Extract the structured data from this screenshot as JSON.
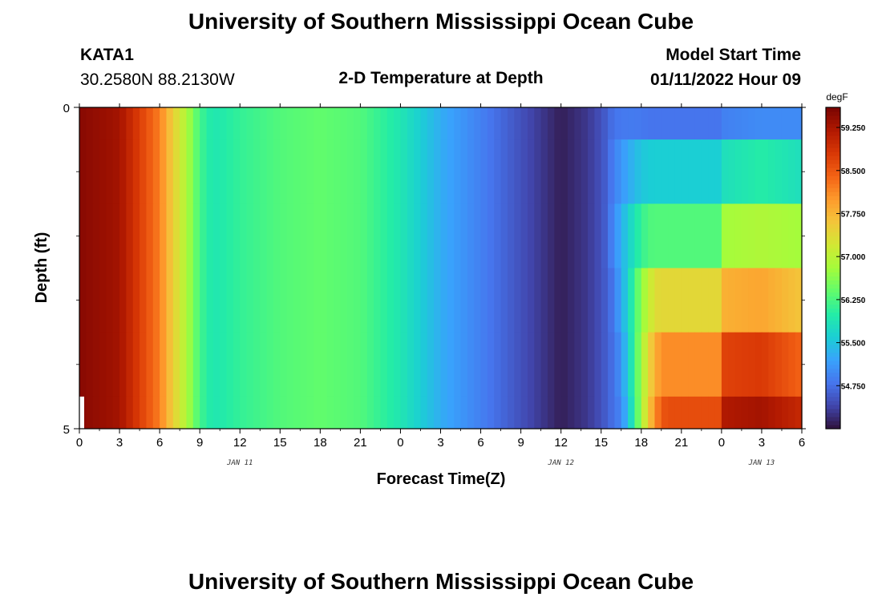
{
  "page": {
    "title_top": "University of Southern Mississippi Ocean Cube",
    "title_bottom": "University of Southern Mississippi Ocean Cube",
    "station_id": "KATA1",
    "station_coords": "30.2580N  88.2130W",
    "plot_title": "2-D Temperature at Depth",
    "model_label": "Model Start Time",
    "model_time": "01/11/2022 Hour 09"
  },
  "chart_data": {
    "type": "heatmap",
    "title": "2-D Temperature at Depth",
    "xlabel": "Forecast Time(Z)",
    "ylabel": "Depth (ft)",
    "x_range_hours": [
      0,
      54
    ],
    "x_tick_labels": [
      "0",
      "3",
      "6",
      "9",
      "12",
      "15",
      "18",
      "21",
      "0",
      "3",
      "6",
      "9",
      "12",
      "15",
      "18",
      "21",
      "0",
      "3",
      "6"
    ],
    "day_labels": [
      {
        "text": "JAN 11",
        "hour": 12
      },
      {
        "text": "JAN 12",
        "hour": 36
      },
      {
        "text": "JAN 13",
        "hour": 51
      }
    ],
    "ylim": [
      0,
      5
    ],
    "y_tick_labels": [
      "0",
      "5"
    ],
    "y_minor_ticks": [
      1,
      2,
      3,
      4
    ],
    "depth_layers_ft": [
      0,
      1,
      2,
      3,
      4,
      5
    ],
    "colorbar": {
      "unit": "degF",
      "range": [
        54.0,
        59.6
      ],
      "tick_values": [
        54.75,
        55.5,
        56.25,
        57.0,
        57.75,
        58.5,
        59.25
      ],
      "tick_labels": [
        "54.750",
        "55.500",
        "56.250",
        "57.000",
        "57.750",
        "58.500",
        "59.250"
      ],
      "colormap": [
        "#30123b",
        "#4145ab",
        "#4675ed",
        "#39a2fc",
        "#1bcfd4",
        "#24eca6",
        "#61fc6c",
        "#a4fc3b",
        "#d1e834",
        "#f3c63a",
        "#fe9b2d",
        "#f36315",
        "#d93806",
        "#b11901",
        "#7a0402"
      ]
    },
    "upper_profile_hours": [
      0,
      3,
      6,
      7,
      8,
      9,
      10,
      12,
      15,
      18,
      21,
      24,
      27,
      30,
      33,
      36,
      38,
      39,
      40,
      42,
      45,
      48,
      51,
      54
    ],
    "upper_profile_degF": [
      59.5,
      59.3,
      58.2,
      57.5,
      56.9,
      56.2,
      55.9,
      56.1,
      56.3,
      56.4,
      56.3,
      55.9,
      55.3,
      54.9,
      54.5,
      54.1,
      54.3,
      54.5,
      54.8,
      55.0,
      55.1,
      55.2,
      55.2,
      55.2
    ],
    "layer_recovery_degF": [
      [
        54.8,
        54.9,
        55.0,
        55.0
      ],
      [
        55.6,
        55.8,
        56.0,
        55.8
      ],
      [
        56.3,
        56.8,
        56.9,
        56.8
      ],
      [
        57.4,
        57.8,
        57.9,
        57.6
      ],
      [
        58.1,
        58.7,
        58.8,
        58.4
      ],
      [
        58.6,
        59.2,
        59.3,
        59.0
      ]
    ],
    "recovery_hours": [
      48,
      51,
      54
    ],
    "recovery_start_hour_by_layer": [
      39,
      39,
      39,
      39.5,
      39.8,
      40
    ]
  }
}
